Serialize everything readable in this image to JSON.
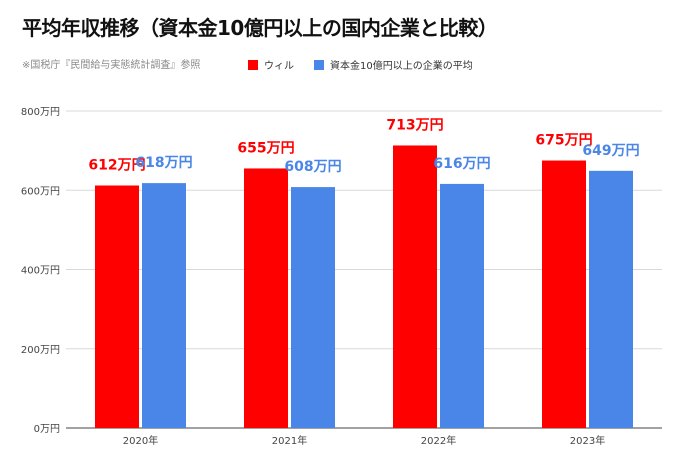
{
  "title": "平均年収推移（資本金10億円以上の国内企業と比較）",
  "source_note": "※国税庁『民間給与実態統計調査』参照",
  "chart_data": {
    "type": "bar",
    "categories": [
      "2020年",
      "2021年",
      "2022年",
      "2023年"
    ],
    "series": [
      {
        "name": "ウィル",
        "color": "#ff0000",
        "values": [
          612,
          655,
          713,
          675
        ],
        "labels": [
          "612万円",
          "655万円",
          "713万円",
          "675万円"
        ]
      },
      {
        "name": "資本金10億円以上の企業の平均",
        "color": "#4a86e8",
        "values": [
          618,
          608,
          616,
          649
        ],
        "labels": [
          "618万円",
          "608万円",
          "616万円",
          "649万円"
        ]
      }
    ],
    "ylim": [
      0,
      800
    ],
    "yticks": [
      0,
      200,
      400,
      600,
      800
    ],
    "ytick_labels": [
      "0万円",
      "200万円",
      "400万円",
      "600万円",
      "800万円"
    ],
    "grid": true,
    "legend_position": "top"
  }
}
